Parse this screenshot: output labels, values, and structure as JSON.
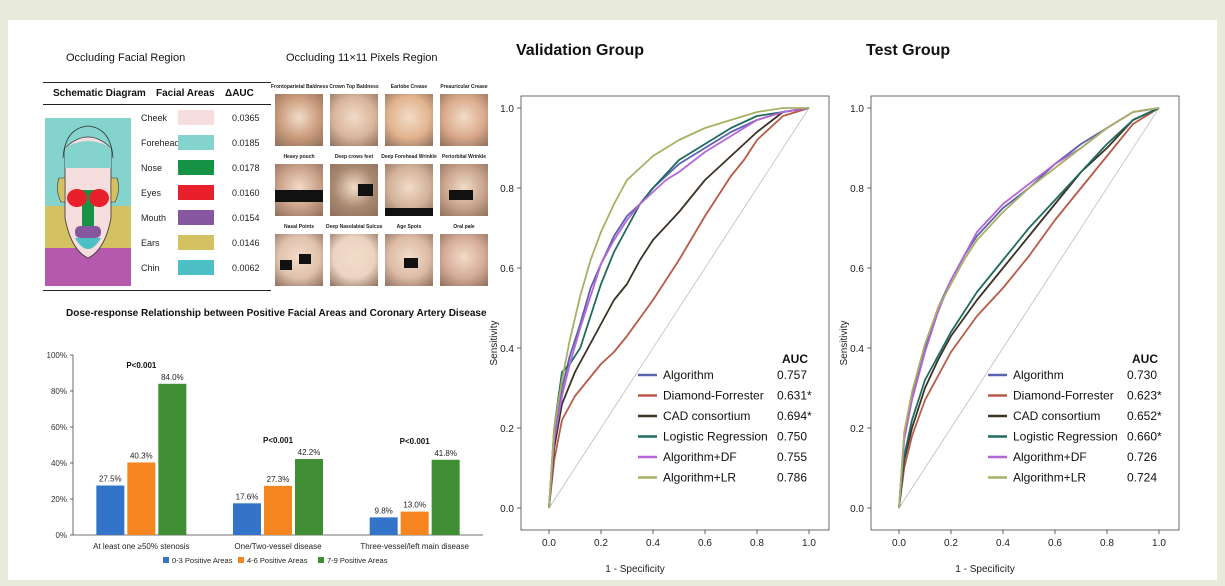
{
  "facial_region": {
    "title": "Occluding Facial Region",
    "col_diagram": "Schematic Diagram",
    "col_areas": "Facial Areas",
    "col_auc": "ΔAUC",
    "rows": [
      {
        "area": "Cheek",
        "color": "#f7dede",
        "auc": "0.0365"
      },
      {
        "area": "Forehead",
        "color": "#84d3cd",
        "auc": "0.0185"
      },
      {
        "area": "Nose",
        "color": "#169244",
        "auc": "0.0178"
      },
      {
        "area": "Eyes",
        "color": "#e8202c",
        "auc": "0.0160"
      },
      {
        "area": "Mouth",
        "color": "#86579e",
        "auc": "0.0154"
      },
      {
        "area": "Ears",
        "color": "#d4c262",
        "auc": "0.0146"
      },
      {
        "area": "Chin",
        "color": "#4cc0c4",
        "auc": "0.0062"
      }
    ]
  },
  "pixels_region": {
    "title": "Occluding 11×11 Pixels Region",
    "labels": [
      "Frontoparietal Baldness",
      "Crown Top Baldness",
      "Earlobe Crease",
      "Preauricular Crease",
      "Heavy pouch",
      "Deep crows feet",
      "Deep Forehead Wrinkle",
      "Periorbital Wrinkle",
      "Nasal Points",
      "Deep Nasolabial Sulcus",
      "Age Spots",
      "Oral pale"
    ]
  },
  "dose_response": {
    "title": "Dose-response Relationship between Positive Facial Areas and Coronary Artery Disease",
    "legend": [
      "0-3 Positive Areas",
      "4-6 Positive Areas",
      "7-9 Positive Areas"
    ],
    "colors": [
      "#3474c8",
      "#f5851f",
      "#3f8e33"
    ]
  },
  "chart_data": [
    {
      "type": "bar",
      "categories": [
        "At least one ≥50% stenosis",
        "One/Two-vessel disease",
        "Three-vessel/left main disease"
      ],
      "series": [
        {
          "name": "0-3 Positive Areas",
          "values": [
            27.5,
            17.6,
            9.8
          ],
          "labels": [
            "27.5%",
            "17.6%",
            "9.8%"
          ]
        },
        {
          "name": "4-6 Positive Areas",
          "values": [
            40.3,
            27.3,
            13.0
          ],
          "labels": [
            "40.3%",
            "27.3%",
            "13.0%"
          ]
        },
        {
          "name": "7-9 Positive Areas",
          "values": [
            84.0,
            42.2,
            41.8
          ],
          "labels": [
            "84.0%",
            "42.2%",
            "41.8%"
          ]
        }
      ],
      "p_values": [
        "P<0.001",
        "P<0.001",
        "P<0.001"
      ],
      "ylim": [
        0,
        100
      ],
      "yticks": [
        "0%",
        "20%",
        "40%",
        "60%",
        "80%",
        "100%"
      ],
      "legend_position": "bottom"
    },
    {
      "type": "line",
      "title": "Validation Group",
      "xlabel": "1 - Specificity",
      "ylabel": "Sensitivity",
      "xlim": [
        0,
        1
      ],
      "ylim": [
        0,
        1
      ],
      "xticks": [
        "0.0",
        "0.2",
        "0.4",
        "0.6",
        "0.8",
        "1.0"
      ],
      "yticks": [
        "0.0",
        "0.2",
        "0.4",
        "0.6",
        "0.8",
        "1.0"
      ],
      "legend_header": "AUC",
      "legend_position": "bottom-right",
      "series": [
        {
          "name": "Algorithm",
          "auc": "0.757",
          "color": "#5b63b0",
          "x": [
            0,
            0.02,
            0.05,
            0.08,
            0.12,
            0.16,
            0.2,
            0.25,
            0.3,
            0.35,
            0.4,
            0.45,
            0.5,
            0.6,
            0.7,
            0.8,
            0.9,
            1.0
          ],
          "y": [
            0,
            0.18,
            0.3,
            0.38,
            0.46,
            0.55,
            0.61,
            0.68,
            0.73,
            0.76,
            0.8,
            0.83,
            0.86,
            0.9,
            0.94,
            0.97,
            0.99,
            1.0
          ]
        },
        {
          "name": "Diamond-Forrester",
          "auc": "0.631*",
          "color": "#b85a48",
          "x": [
            0,
            0.02,
            0.05,
            0.1,
            0.15,
            0.2,
            0.25,
            0.3,
            0.4,
            0.5,
            0.6,
            0.7,
            0.75,
            0.8,
            0.9,
            1.0
          ],
          "y": [
            0,
            0.12,
            0.22,
            0.28,
            0.32,
            0.36,
            0.39,
            0.43,
            0.52,
            0.62,
            0.73,
            0.83,
            0.87,
            0.92,
            0.98,
            1.0
          ]
        },
        {
          "name": "CAD consortium",
          "auc": "0.694*",
          "color": "#3c3226",
          "x": [
            0,
            0.02,
            0.05,
            0.1,
            0.15,
            0.2,
            0.25,
            0.3,
            0.35,
            0.4,
            0.5,
            0.6,
            0.7,
            0.8,
            0.9,
            1.0
          ],
          "y": [
            0,
            0.15,
            0.26,
            0.34,
            0.4,
            0.46,
            0.52,
            0.56,
            0.62,
            0.67,
            0.74,
            0.82,
            0.88,
            0.94,
            0.99,
            1.0
          ]
        },
        {
          "name": "Logistic Regression",
          "auc": "0.750",
          "color": "#1f6b5e",
          "x": [
            0,
            0.02,
            0.05,
            0.08,
            0.12,
            0.16,
            0.2,
            0.25,
            0.3,
            0.35,
            0.4,
            0.5,
            0.6,
            0.7,
            0.8,
            0.9,
            1.0
          ],
          "y": [
            0,
            0.2,
            0.34,
            0.36,
            0.4,
            0.48,
            0.56,
            0.64,
            0.7,
            0.76,
            0.8,
            0.87,
            0.91,
            0.95,
            0.98,
            0.99,
            1.0
          ]
        },
        {
          "name": "Algorithm+DF",
          "auc": "0.755",
          "color": "#b565d6",
          "x": [
            0,
            0.02,
            0.05,
            0.08,
            0.12,
            0.16,
            0.2,
            0.25,
            0.3,
            0.35,
            0.4,
            0.45,
            0.5,
            0.6,
            0.7,
            0.8,
            0.9,
            1.0
          ],
          "y": [
            0,
            0.17,
            0.28,
            0.36,
            0.45,
            0.53,
            0.61,
            0.67,
            0.72,
            0.76,
            0.79,
            0.82,
            0.84,
            0.89,
            0.93,
            0.97,
            0.99,
            1.0
          ]
        },
        {
          "name": "Algorithm+LR",
          "auc": "0.786",
          "color": "#a8b064",
          "x": [
            0,
            0.02,
            0.05,
            0.08,
            0.12,
            0.16,
            0.2,
            0.25,
            0.3,
            0.35,
            0.4,
            0.5,
            0.6,
            0.7,
            0.8,
            0.9,
            1.0
          ],
          "y": [
            0,
            0.2,
            0.32,
            0.42,
            0.53,
            0.62,
            0.69,
            0.76,
            0.82,
            0.85,
            0.88,
            0.92,
            0.95,
            0.97,
            0.99,
            1.0,
            1.0
          ]
        }
      ]
    },
    {
      "type": "line",
      "title": "Test Group",
      "xlabel": "1 - Specificity",
      "ylabel": "Sensitivity",
      "xlim": [
        0,
        1
      ],
      "ylim": [
        0,
        1
      ],
      "xticks": [
        "0.0",
        "0.2",
        "0.4",
        "0.6",
        "0.8",
        "1.0"
      ],
      "yticks": [
        "0.0",
        "0.2",
        "0.4",
        "0.6",
        "0.8",
        "1.0"
      ],
      "legend_header": "AUC",
      "legend_position": "bottom-right",
      "series": [
        {
          "name": "Algorithm",
          "auc": "0.730",
          "color": "#5b63b0",
          "x": [
            0,
            0.02,
            0.05,
            0.1,
            0.15,
            0.2,
            0.25,
            0.3,
            0.4,
            0.5,
            0.6,
            0.7,
            0.8,
            0.9,
            1.0
          ],
          "y": [
            0,
            0.18,
            0.28,
            0.4,
            0.5,
            0.57,
            0.63,
            0.68,
            0.75,
            0.8,
            0.86,
            0.91,
            0.95,
            0.99,
            1.0
          ]
        },
        {
          "name": "Diamond-Forrester",
          "auc": "0.623*",
          "color": "#b85a48",
          "x": [
            0,
            0.02,
            0.05,
            0.1,
            0.15,
            0.2,
            0.3,
            0.4,
            0.5,
            0.6,
            0.7,
            0.8,
            0.9,
            1.0
          ],
          "y": [
            0,
            0.1,
            0.18,
            0.27,
            0.33,
            0.39,
            0.48,
            0.55,
            0.63,
            0.72,
            0.8,
            0.88,
            0.96,
            1.0
          ]
        },
        {
          "name": "CAD consortium",
          "auc": "0.652*",
          "color": "#3c3226",
          "x": [
            0,
            0.02,
            0.05,
            0.1,
            0.15,
            0.2,
            0.3,
            0.4,
            0.5,
            0.6,
            0.7,
            0.8,
            0.9,
            1.0
          ],
          "y": [
            0,
            0.12,
            0.2,
            0.3,
            0.37,
            0.43,
            0.52,
            0.6,
            0.68,
            0.76,
            0.84,
            0.9,
            0.97,
            1.0
          ]
        },
        {
          "name": "Logistic Regression",
          "auc": "0.660*",
          "color": "#1f6b5e",
          "x": [
            0,
            0.02,
            0.05,
            0.1,
            0.15,
            0.2,
            0.3,
            0.4,
            0.5,
            0.6,
            0.7,
            0.8,
            0.9,
            1.0
          ],
          "y": [
            0,
            0.13,
            0.22,
            0.32,
            0.38,
            0.44,
            0.54,
            0.62,
            0.7,
            0.77,
            0.84,
            0.91,
            0.97,
            1.0
          ]
        },
        {
          "name": "Algorithm+DF",
          "auc": "0.726",
          "color": "#b565d6",
          "x": [
            0,
            0.02,
            0.05,
            0.1,
            0.15,
            0.2,
            0.25,
            0.3,
            0.4,
            0.5,
            0.6,
            0.7,
            0.8,
            0.9,
            1.0
          ],
          "y": [
            0,
            0.17,
            0.27,
            0.39,
            0.49,
            0.57,
            0.63,
            0.69,
            0.76,
            0.81,
            0.86,
            0.9,
            0.95,
            0.99,
            1.0
          ]
        },
        {
          "name": "Algorithm+LR",
          "auc": "0.724",
          "color": "#a8b064",
          "x": [
            0,
            0.02,
            0.05,
            0.1,
            0.15,
            0.2,
            0.25,
            0.3,
            0.4,
            0.5,
            0.6,
            0.7,
            0.8,
            0.9,
            1.0
          ],
          "y": [
            0,
            0.19,
            0.29,
            0.41,
            0.5,
            0.56,
            0.62,
            0.67,
            0.74,
            0.8,
            0.85,
            0.9,
            0.95,
            0.99,
            1.0
          ]
        }
      ]
    }
  ]
}
